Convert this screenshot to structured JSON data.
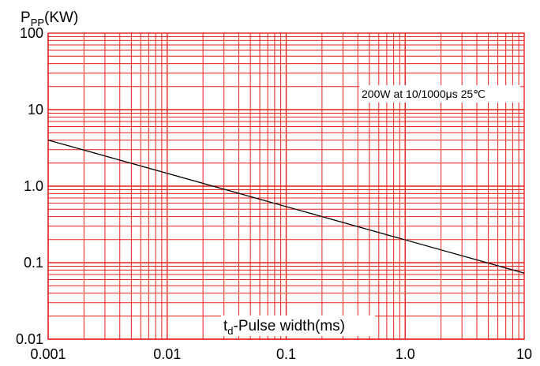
{
  "chart_data": {
    "type": "line",
    "title": "",
    "ylabel": {
      "main": "P",
      "sub": "PP",
      "unit": "(KW)"
    },
    "xlabel": {
      "main": "t",
      "sub": "d",
      "rest": "-Pulse width(ms)"
    },
    "x_scale": "log",
    "y_scale": "log",
    "xlim": [
      0.001,
      10
    ],
    "ylim": [
      0.01,
      100
    ],
    "x_ticks": [
      {
        "value": 0.001,
        "label": "0.001"
      },
      {
        "value": 0.01,
        "label": "0.01"
      },
      {
        "value": 0.1,
        "label": "0.1"
      },
      {
        "value": 1,
        "label": "1.0"
      },
      {
        "value": 10,
        "label": "10"
      }
    ],
    "y_ticks": [
      {
        "value": 0.01,
        "label": "0.01"
      },
      {
        "value": 0.1,
        "label": "0.1"
      },
      {
        "value": 1,
        "label": "1.0"
      },
      {
        "value": 10,
        "label": "10"
      },
      {
        "value": 100,
        "label": "100"
      }
    ],
    "grid": true,
    "grid_color": "#e8201c",
    "line_color": "#000000",
    "annotation": "200W at 10/1000μs 25℃",
    "series": [
      {
        "x": [
          0.001,
          10
        ],
        "y": [
          4.0,
          0.073
        ]
      }
    ]
  }
}
